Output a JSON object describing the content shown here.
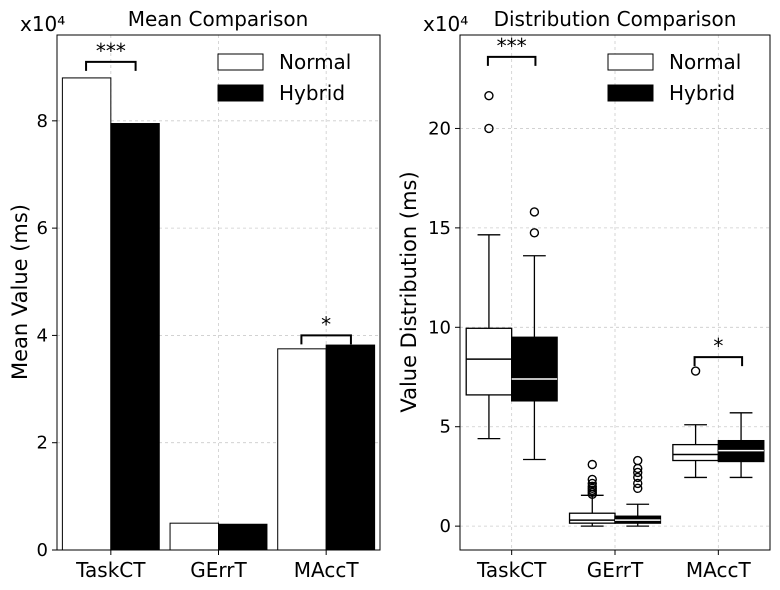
{
  "chart_data": [
    {
      "type": "bar",
      "title": "Mean Comparison",
      "ylabel": "Mean Value (ms)",
      "xlabel": "",
      "y_multiplier_label": "x10⁴",
      "categories": [
        "TaskCT",
        "GErrT",
        "MAccT"
      ],
      "series": [
        {
          "name": "Normal",
          "values": [
            88000,
            5000,
            37500
          ],
          "color": "#ffffff"
        },
        {
          "name": "Hybrid",
          "values": [
            79500,
            4800,
            38200
          ],
          "color": "#000000"
        }
      ],
      "ylim": [
        0,
        96000
      ],
      "yticks": [
        0,
        20000,
        40000,
        60000,
        80000
      ],
      "ytick_labels": [
        "0",
        "2",
        "4",
        "6",
        "8"
      ],
      "grid": true,
      "legend_position": "top-right",
      "significance": [
        {
          "category_index": 0,
          "label": "***",
          "y": 91000
        },
        {
          "category_index": 2,
          "label": "*",
          "y": 40000
        }
      ]
    },
    {
      "type": "box",
      "title": "Distribution Comparison",
      "ylabel": "Value Distribution (ms)",
      "xlabel": "",
      "y_multiplier_label": "x10⁴",
      "categories": [
        "TaskCT",
        "GErrT",
        "MAccT"
      ],
      "series": [
        {
          "name": "Normal",
          "color": "#ffffff",
          "boxes": [
            {
              "whisker_low": 44000,
              "q1": 66000,
              "median": 84000,
              "q3": 99500,
              "whisker_high": 146500,
              "outliers": [
                200000,
                216500
              ]
            },
            {
              "whisker_low": 0,
              "q1": 1500,
              "median": 3000,
              "q3": 6500,
              "whisker_high": 15500,
              "outliers": [
                16000,
                17000,
                18000,
                19000,
                20000,
                21500,
                23500,
                31000
              ]
            },
            {
              "whisker_low": 24500,
              "q1": 33000,
              "median": 36000,
              "q3": 41000,
              "whisker_high": 51000,
              "outliers": [
                78000
              ]
            }
          ]
        },
        {
          "name": "Hybrid",
          "color": "#000000",
          "boxes": [
            {
              "whisker_low": 33500,
              "q1": 63000,
              "median": 74000,
              "q3": 95000,
              "whisker_high": 136000,
              "outliers": [
                147500,
                158000
              ]
            },
            {
              "whisker_low": 0,
              "q1": 1500,
              "median": 3000,
              "q3": 5000,
              "whisker_high": 11000,
              "outliers": [
                19000,
                21500,
                24500,
                27000,
                29000,
                33000
              ]
            },
            {
              "whisker_low": 24500,
              "q1": 32500,
              "median": 38000,
              "q3": 43000,
              "whisker_high": 57000,
              "outliers": []
            }
          ]
        }
      ],
      "ylim": [
        -12000,
        247000
      ],
      "yticks": [
        0,
        50000,
        100000,
        150000,
        200000
      ],
      "ytick_labels": [
        "0",
        "5",
        "10",
        "15",
        "20"
      ],
      "grid": true,
      "legend_position": "top-right",
      "significance": [
        {
          "category_index": 0,
          "label": "***",
          "y": 236000
        },
        {
          "category_index": 2,
          "label": "*",
          "y": 85000
        }
      ]
    }
  ]
}
